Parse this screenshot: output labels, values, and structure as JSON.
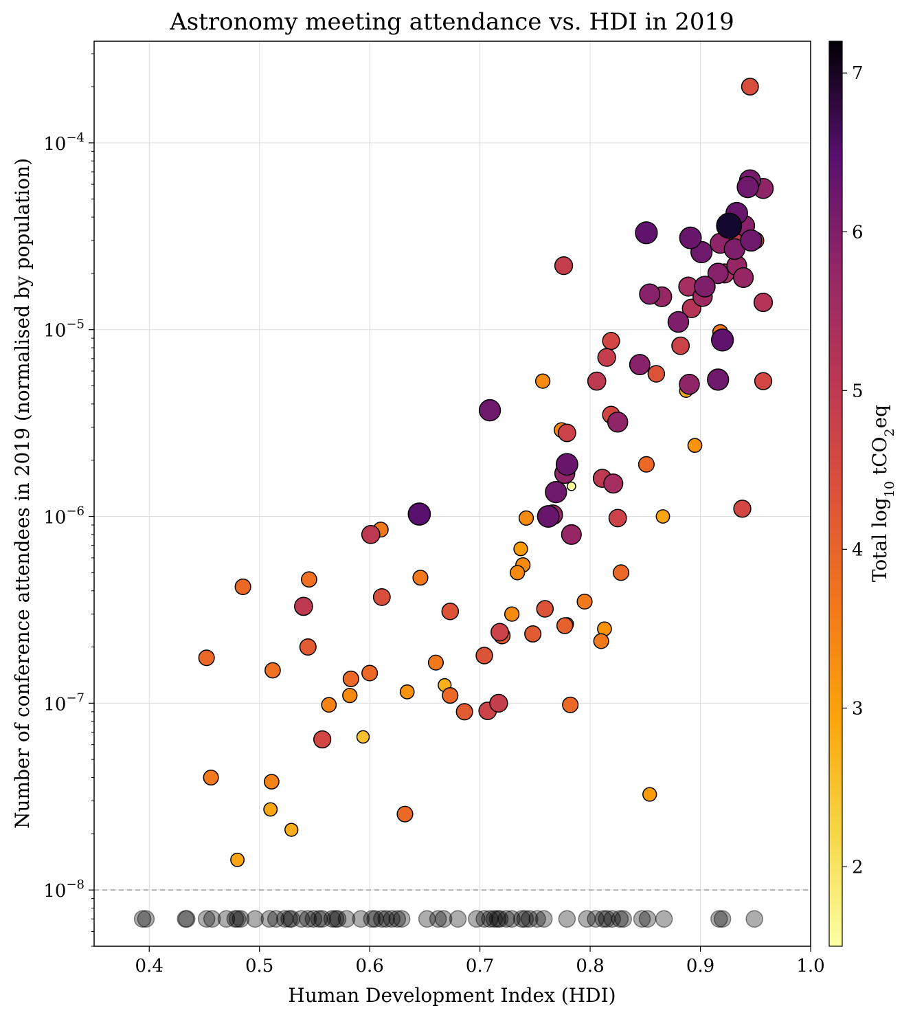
{
  "chart_data": {
    "type": "scatter",
    "title": "Astronomy meeting attendance vs. HDI in 2019",
    "xlabel": "Human Development Index (HDI)",
    "ylabel": "Number of conference attendees in 2019 (normalised by population)",
    "x_range": [
      0.35,
      1.0
    ],
    "y_scale": "log",
    "y_range": [
      5e-09,
      0.00035
    ],
    "x_ticks": [
      0.4,
      0.5,
      0.6,
      0.7,
      0.8,
      0.9,
      1.0
    ],
    "x_tick_labels": [
      "0.4",
      "0.5",
      "0.6",
      "0.7",
      "0.8",
      "0.9",
      "1.0"
    ],
    "y_ticks": [
      1e-08,
      1e-07,
      1e-06,
      1e-05,
      0.0001
    ],
    "y_tick_labels": [
      [
        "10",
        "−8"
      ],
      [
        "10",
        "−7"
      ],
      [
        "10",
        "−6"
      ],
      [
        "10",
        "−5"
      ],
      [
        "10",
        "−4"
      ]
    ],
    "grid": true,
    "reference_line": {
      "y": 1e-08,
      "style": "dashed",
      "color": "#999999"
    },
    "colorbar": {
      "label_parts": [
        "Total log",
        "10",
        " tCO",
        "2",
        "eq"
      ],
      "colormap": "inferno",
      "range": [
        1.5,
        7.2
      ],
      "ticks": [
        2,
        3,
        4,
        5,
        6,
        7
      ],
      "tick_labels": [
        "2",
        "3",
        "4",
        "5",
        "6",
        "7"
      ]
    },
    "points": [
      [
        0.945,
        0.0002,
        4.2
      ],
      [
        0.945,
        6.3e-05,
        5.5
      ],
      [
        0.943,
        5.8e-05,
        5.6
      ],
      [
        0.957,
        5.7e-05,
        5.2
      ],
      [
        0.933,
        4.2e-05,
        5.7
      ],
      [
        0.926,
        3.6e-05,
        6.8
      ],
      [
        0.94,
        3.6e-05,
        5.3
      ],
      [
        0.932,
        3.2e-05,
        4.6
      ],
      [
        0.95,
        3e-05,
        4.1
      ],
      [
        0.946,
        3e-05,
        5.6
      ],
      [
        0.851,
        3.3e-05,
        5.8
      ],
      [
        0.891,
        3.1e-05,
        5.7
      ],
      [
        0.918,
        2.9e-05,
        5.2
      ],
      [
        0.931,
        2.7e-05,
        5.4
      ],
      [
        0.901,
        2.6e-05,
        5.6
      ],
      [
        0.776,
        2.2e-05,
        4.5
      ],
      [
        0.933,
        2.2e-05,
        5.1
      ],
      [
        0.916,
        2e-05,
        5.3
      ],
      [
        0.922,
        2e-05,
        4.9
      ],
      [
        0.939,
        1.9e-05,
        5.1
      ],
      [
        0.889,
        1.7e-05,
        4.9
      ],
      [
        0.904,
        1.7e-05,
        5.4
      ],
      [
        0.854,
        1.55e-05,
        5.3
      ],
      [
        0.865,
        1.5e-05,
        5.1
      ],
      [
        0.902,
        1.5e-05,
        5.0
      ],
      [
        0.957,
        1.4e-05,
        4.7
      ],
      [
        0.892,
        1.3e-05,
        4.7
      ],
      [
        0.88,
        1.1e-05,
        5.4
      ],
      [
        0.918,
        9.7e-06,
        3.6
      ],
      [
        0.819,
        8.7e-06,
        4.3
      ],
      [
        0.92,
        8.8e-06,
        5.8
      ],
      [
        0.882,
        8.2e-06,
        4.4
      ],
      [
        0.815,
        7.1e-06,
        4.5
      ],
      [
        0.845,
        6.5e-06,
        5.3
      ],
      [
        0.86,
        5.8e-06,
        4.1
      ],
      [
        0.806,
        5.3e-06,
        4.6
      ],
      [
        0.757,
        5.3e-06,
        3.4
      ],
      [
        0.916,
        5.4e-06,
        5.6
      ],
      [
        0.89,
        5.1e-06,
        5.2
      ],
      [
        0.957,
        5.3e-06,
        4.3
      ],
      [
        0.887,
        4.7e-06,
        3.0
      ],
      [
        0.709,
        3.7e-06,
        5.6
      ],
      [
        0.819,
        3.5e-06,
        4.3
      ],
      [
        0.825,
        3.2e-06,
        5.2
      ],
      [
        0.779,
        2.8e-06,
        4.4
      ],
      [
        0.774,
        2.9e-06,
        3.5
      ],
      [
        0.895,
        2.4e-06,
        3.3
      ],
      [
        0.779,
        1.9e-06,
        5.7
      ],
      [
        0.777,
        1.7e-06,
        5.2
      ],
      [
        0.851,
        1.9e-06,
        3.8
      ],
      [
        0.811,
        1.6e-06,
        4.6
      ],
      [
        0.821,
        1.5e-06,
        4.9
      ],
      [
        0.783,
        1.45e-06,
        1.6
      ],
      [
        0.769,
        1.35e-06,
        5.6
      ],
      [
        0.645,
        1.03e-06,
        5.9
      ],
      [
        0.766,
        1.02e-06,
        5.1
      ],
      [
        0.762,
        1e-06,
        5.7
      ],
      [
        0.742,
        9.8e-07,
        3.4
      ],
      [
        0.866,
        1e-06,
        3.1
      ],
      [
        0.938,
        1.1e-06,
        4.3
      ],
      [
        0.825,
        9.8e-07,
        4.4
      ],
      [
        0.61,
        8.5e-07,
        3.6
      ],
      [
        0.601,
        8e-07,
        4.6
      ],
      [
        0.783,
        8e-07,
        5.1
      ],
      [
        0.737,
        6.7e-07,
        3.2
      ],
      [
        0.739,
        5.5e-07,
        3.4
      ],
      [
        0.734,
        5e-07,
        3.4
      ],
      [
        0.828,
        5e-07,
        3.8
      ],
      [
        0.545,
        4.6e-07,
        3.7
      ],
      [
        0.646,
        4.7e-07,
        3.6
      ],
      [
        0.485,
        4.2e-07,
        3.8
      ],
      [
        0.611,
        3.7e-07,
        4.2
      ],
      [
        0.54,
        3.3e-07,
        4.6
      ],
      [
        0.673,
        3.1e-07,
        4.1
      ],
      [
        0.759,
        3.2e-07,
        4.1
      ],
      [
        0.795,
        3.5e-07,
        3.6
      ],
      [
        0.729,
        3e-07,
        3.4
      ],
      [
        0.777,
        2.6e-07,
        3.9
      ],
      [
        0.779,
        2.65e-07,
        3.0
      ],
      [
        0.813,
        2.5e-07,
        3.3
      ],
      [
        0.718,
        2.4e-07,
        4.4
      ],
      [
        0.72,
        2.3e-07,
        4.0
      ],
      [
        0.748,
        2.35e-07,
        4.0
      ],
      [
        0.81,
        2.15e-07,
        3.6
      ],
      [
        0.544,
        2e-07,
        4.0
      ],
      [
        0.704,
        1.8e-07,
        4.1
      ],
      [
        0.452,
        1.75e-07,
        3.8
      ],
      [
        0.66,
        1.65e-07,
        3.6
      ],
      [
        0.512,
        1.5e-07,
        3.7
      ],
      [
        0.6,
        1.45e-07,
        3.8
      ],
      [
        0.583,
        1.35e-07,
        3.8
      ],
      [
        0.668,
        1.25e-07,
        3.0
      ],
      [
        0.634,
        1.15e-07,
        3.3
      ],
      [
        0.582,
        1.1e-07,
        3.4
      ],
      [
        0.673,
        1.1e-07,
        3.8
      ],
      [
        0.563,
        9.8e-08,
        3.5
      ],
      [
        0.717,
        1e-07,
        4.5
      ],
      [
        0.782,
        9.8e-08,
        3.8
      ],
      [
        0.686,
        9e-08,
        4.0
      ],
      [
        0.707,
        9.1e-08,
        4.4
      ],
      [
        0.557,
        6.4e-08,
        4.3
      ],
      [
        0.594,
        6.6e-08,
        2.8
      ],
      [
        0.456,
        4e-08,
        3.6
      ],
      [
        0.511,
        3.8e-08,
        3.5
      ],
      [
        0.854,
        3.25e-08,
        3.2
      ],
      [
        0.51,
        2.7e-08,
        3.1
      ],
      [
        0.632,
        2.55e-08,
        3.8
      ],
      [
        0.529,
        2.1e-08,
        3.0
      ],
      [
        0.48,
        1.45e-08,
        3.1
      ]
    ],
    "zero_attendance_y": 7e-09,
    "zero_attendance_hdi": [
      0.394,
      0.397,
      0.433,
      0.434,
      0.452,
      0.457,
      0.47,
      0.478,
      0.48,
      0.483,
      0.496,
      0.509,
      0.515,
      0.523,
      0.527,
      0.529,
      0.538,
      0.544,
      0.549,
      0.554,
      0.557,
      0.566,
      0.569,
      0.571,
      0.579,
      0.592,
      0.602,
      0.605,
      0.611,
      0.615,
      0.62,
      0.625,
      0.629,
      0.652,
      0.662,
      0.667,
      0.68,
      0.697,
      0.704,
      0.709,
      0.713,
      0.716,
      0.718,
      0.724,
      0.729,
      0.738,
      0.741,
      0.745,
      0.752,
      0.758,
      0.779,
      0.797,
      0.805,
      0.812,
      0.815,
      0.82,
      0.827,
      0.83,
      0.847,
      0.852,
      0.867,
      0.917,
      0.92,
      0.949
    ]
  }
}
